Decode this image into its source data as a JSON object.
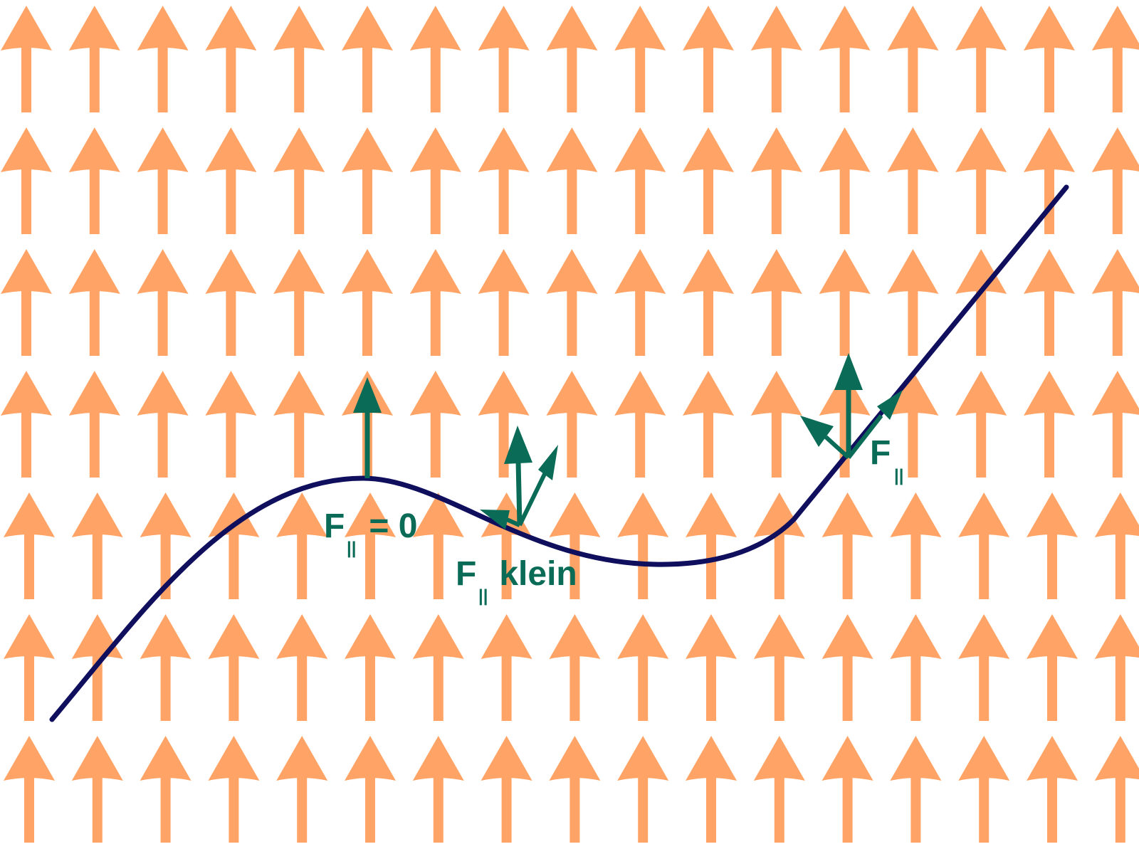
{
  "colors": {
    "field_arrow": "#FFA466",
    "curve": "#0F0F5E",
    "force_arrow": "#0A6B57",
    "background": "#FFFFFF"
  },
  "field": {
    "rows": 7,
    "columns": 17,
    "direction": "up"
  },
  "labels": {
    "top_point": {
      "symbol": "F",
      "subscript": "||",
      "suffix": " = 0"
    },
    "middle_point": {
      "symbol": "F",
      "subscript": "||",
      "suffix": " klein"
    },
    "right_point": {
      "symbol": "F",
      "subscript": "||",
      "suffix": ""
    }
  }
}
